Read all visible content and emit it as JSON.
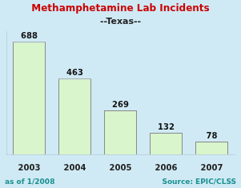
{
  "chart_data": {
    "type": "bar",
    "title": "Methamphetamine Lab Incidents",
    "subtitle": "--Texas--",
    "categories": [
      "2003",
      "2004",
      "2005",
      "2006",
      "2007"
    ],
    "values": [
      688,
      463,
      269,
      132,
      78
    ],
    "color": "#d8f5cc",
    "ylim": [
      0,
      750
    ],
    "grid": false,
    "tick_labels": "x",
    "data_labels": true,
    "annotations": [
      "as of 1/2008",
      "Source: EPIC/CLSS"
    ]
  }
}
